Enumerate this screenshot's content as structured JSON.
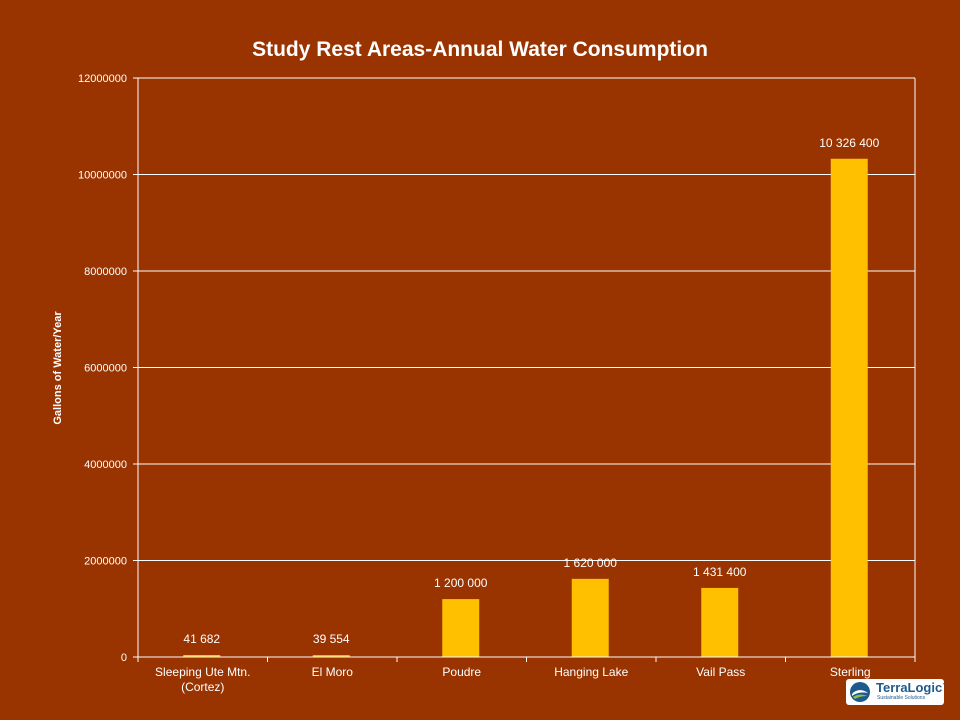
{
  "chart_data": {
    "type": "bar",
    "title": "Study Rest Areas-Annual Water Consumption",
    "ylabel": "Gallons of Water/Year",
    "xlabel": "",
    "ylim": [
      0,
      12000000
    ],
    "yticks": [
      0,
      2000000,
      4000000,
      6000000,
      8000000,
      10000000,
      12000000
    ],
    "ytick_labels": [
      "0",
      "2000000",
      "4000000",
      "6000000",
      "8000000",
      "10000000",
      "12000000"
    ],
    "grid": true,
    "legend": "none",
    "categories": [
      [
        "Sleeping Ute Mtn.",
        "(Cortez)"
      ],
      [
        "El Moro"
      ],
      [
        "Poudre"
      ],
      [
        "Hanging Lake"
      ],
      [
        "Vail Pass"
      ],
      [
        "Sterling"
      ]
    ],
    "values": [
      41682,
      39554,
      1200000,
      1620000,
      1431400,
      10326400
    ],
    "data_labels": [
      "41 682",
      "39 554",
      "1 200 000",
      "1 620 000",
      "1 431 400",
      "10 326 400"
    ],
    "colors": {
      "background": "#993300",
      "bar": "#ffc000",
      "axis": "#ffffff",
      "text": "#ffffff"
    }
  },
  "logo": {
    "name": "TerraLogic",
    "tm": "™",
    "tagline": "Sustainable Solutions"
  }
}
